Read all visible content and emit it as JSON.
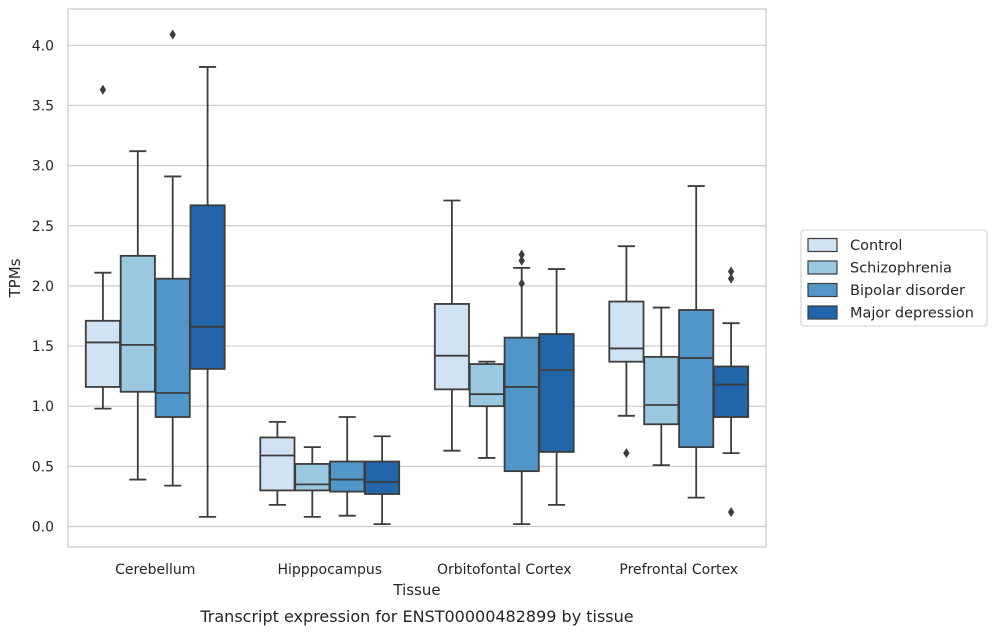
{
  "chart_data": {
    "type": "box",
    "xlabel": "Tissue",
    "ylabel": "TPMs",
    "caption": "Transcript expression for ENST00000482899 by tissue",
    "ylim": [
      -0.17,
      4.3
    ],
    "yticks": [
      "0.0",
      "0.5",
      "1.0",
      "1.5",
      "2.0",
      "2.5",
      "3.0",
      "3.5",
      "4.0"
    ],
    "grid": "horizontal",
    "legend_position": "right",
    "categories": [
      "Cerebellum",
      "Hipppocampus",
      "Orbitofontal Cortex",
      "Prefrontal Cortex"
    ],
    "series": [
      {
        "name": "Control",
        "color": "#d1e2f2",
        "boxes": [
          {
            "whislo": 0.98,
            "q1": 1.16,
            "med": 1.53,
            "q3": 1.71,
            "whishi": 2.11,
            "fliers": [
              3.63
            ]
          },
          {
            "whislo": 0.18,
            "q1": 0.3,
            "med": 0.59,
            "q3": 0.74,
            "whishi": 0.87,
            "fliers": []
          },
          {
            "whislo": 0.63,
            "q1": 1.14,
            "med": 1.42,
            "q3": 1.85,
            "whishi": 2.71,
            "fliers": []
          },
          {
            "whislo": 0.92,
            "q1": 1.37,
            "med": 1.48,
            "q3": 1.87,
            "whishi": 2.33,
            "fliers": [
              0.61
            ]
          }
        ]
      },
      {
        "name": "Schizophrenia",
        "color": "#9ac8e0",
        "boxes": [
          {
            "whislo": 0.39,
            "q1": 1.12,
            "med": 1.51,
            "q3": 2.25,
            "whishi": 3.12,
            "fliers": []
          },
          {
            "whislo": 0.08,
            "q1": 0.3,
            "med": 0.35,
            "q3": 0.52,
            "whishi": 0.66,
            "fliers": []
          },
          {
            "whislo": 0.57,
            "q1": 1.0,
            "med": 1.1,
            "q3": 1.35,
            "whishi": 1.37,
            "fliers": []
          },
          {
            "whislo": 0.51,
            "q1": 0.85,
            "med": 1.01,
            "q3": 1.41,
            "whishi": 1.82,
            "fliers": []
          }
        ]
      },
      {
        "name": "Bipolar disorder",
        "color": "#5096c8",
        "boxes": [
          {
            "whislo": 0.34,
            "q1": 0.91,
            "med": 1.11,
            "q3": 2.06,
            "whishi": 2.91,
            "fliers": [
              4.09
            ]
          },
          {
            "whislo": 0.09,
            "q1": 0.29,
            "med": 0.39,
            "q3": 0.54,
            "whishi": 0.91,
            "fliers": []
          },
          {
            "whislo": 0.02,
            "q1": 0.46,
            "med": 1.16,
            "q3": 1.57,
            "whishi": 2.15,
            "fliers": [
              2.02,
              2.21,
              2.26
            ]
          },
          {
            "whislo": 0.24,
            "q1": 0.66,
            "med": 1.4,
            "q3": 1.8,
            "whishi": 2.83,
            "fliers": []
          }
        ]
      },
      {
        "name": "Major depression",
        "color": "#2265a9",
        "boxes": [
          {
            "whislo": 0.08,
            "q1": 1.31,
            "med": 1.66,
            "q3": 2.67,
            "whishi": 3.82,
            "fliers": []
          },
          {
            "whislo": 0.02,
            "q1": 0.27,
            "med": 0.37,
            "q3": 0.54,
            "whishi": 0.75,
            "fliers": []
          },
          {
            "whislo": 0.18,
            "q1": 0.62,
            "med": 1.3,
            "q3": 1.6,
            "whishi": 2.14,
            "fliers": []
          },
          {
            "whislo": 0.61,
            "q1": 0.91,
            "med": 1.18,
            "q3": 1.33,
            "whishi": 1.69,
            "fliers": [
              0.12,
              2.06,
              2.12
            ]
          }
        ]
      }
    ]
  }
}
